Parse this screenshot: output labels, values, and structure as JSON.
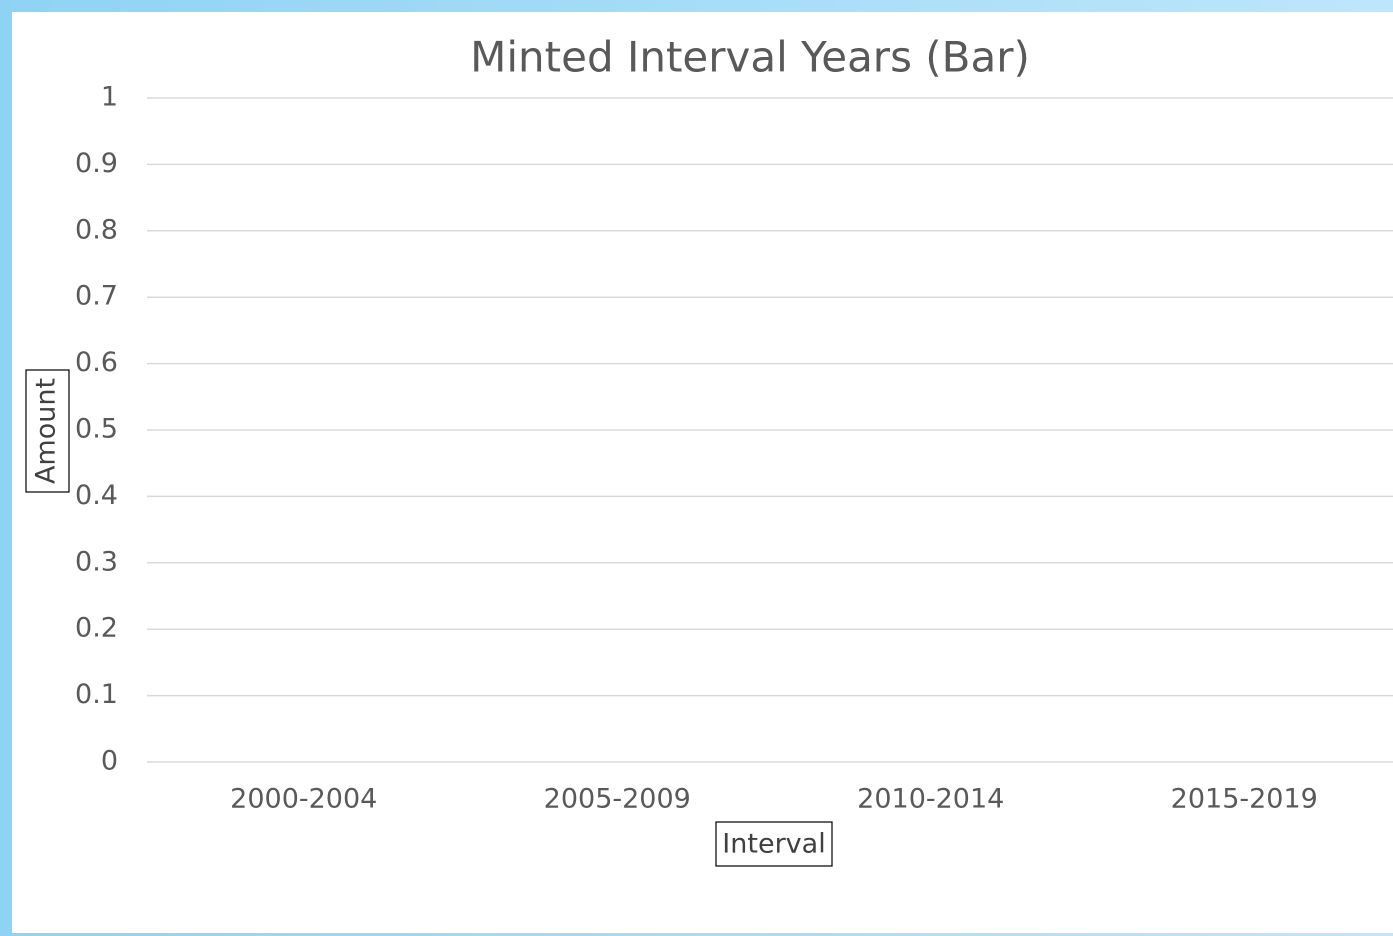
{
  "chart_data": {
    "type": "bar",
    "title": "Minted Interval Years (Bar)",
    "x_label": "Interval",
    "y_label": "Amount",
    "categories": [
      "2000-2004",
      "2005-2009",
      "2010-2014",
      "2015-2019"
    ],
    "values": [
      0,
      0,
      0,
      0
    ],
    "color": "#4472c4",
    "ylim": [
      0,
      1
    ],
    "yticks": [
      0,
      0.1,
      0.2,
      0.3,
      0.4,
      0.5,
      0.6,
      0.7,
      0.8,
      0.9,
      1
    ],
    "grid": true
  }
}
